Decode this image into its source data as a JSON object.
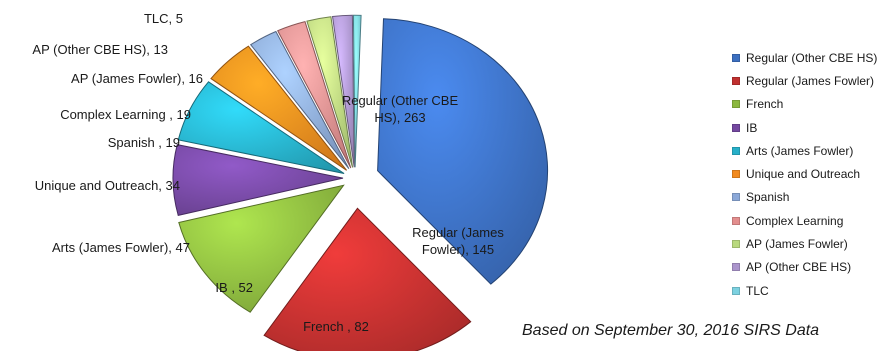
{
  "chart_data": {
    "type": "pie",
    "exploded": true,
    "legend_position": "right",
    "slices": [
      {
        "name": "Regular (Other CBE HS)",
        "value": 263,
        "label": "Regular (Other CBE HS), 263",
        "color": "#3c6fc0"
      },
      {
        "name": "Regular (James Fowler)",
        "value": 145,
        "label": "Regular (James Fowler), 145",
        "color": "#c0302f"
      },
      {
        "name": "French",
        "value": 82,
        "label": "French , 82",
        "color": "#8cb83f"
      },
      {
        "name": "IB",
        "value": 52,
        "label": "IB , 52",
        "color": "#7448a0"
      },
      {
        "name": "Arts (James Fowler)",
        "value": 47,
        "label": "Arts (James Fowler), 47",
        "color": "#27afc8"
      },
      {
        "name": "Unique and Outreach",
        "value": 34,
        "label": "Unique and Outreach, 34",
        "color": "#f28a1e"
      },
      {
        "name": "Spanish",
        "value": 19,
        "label": "Spanish , 19",
        "color": "#8ba8d8"
      },
      {
        "name": "Complex Learning",
        "value": 19,
        "label": "Complex Learning , 19",
        "color": "#e38e8e"
      },
      {
        "name": "AP (James Fowler)",
        "value": 16,
        "label": "AP (James Fowler), 16",
        "color": "#b9d97e"
      },
      {
        "name": "AP (Other CBE HS)",
        "value": 13,
        "label": "AP (Other CBE HS), 13",
        "color": "#ab95cc"
      },
      {
        "name": "TLC",
        "value": 5,
        "label": "TLC, 5",
        "color": "#7cd1e0"
      }
    ]
  },
  "note": "Based on September 30, 2016  SIRS  Data"
}
